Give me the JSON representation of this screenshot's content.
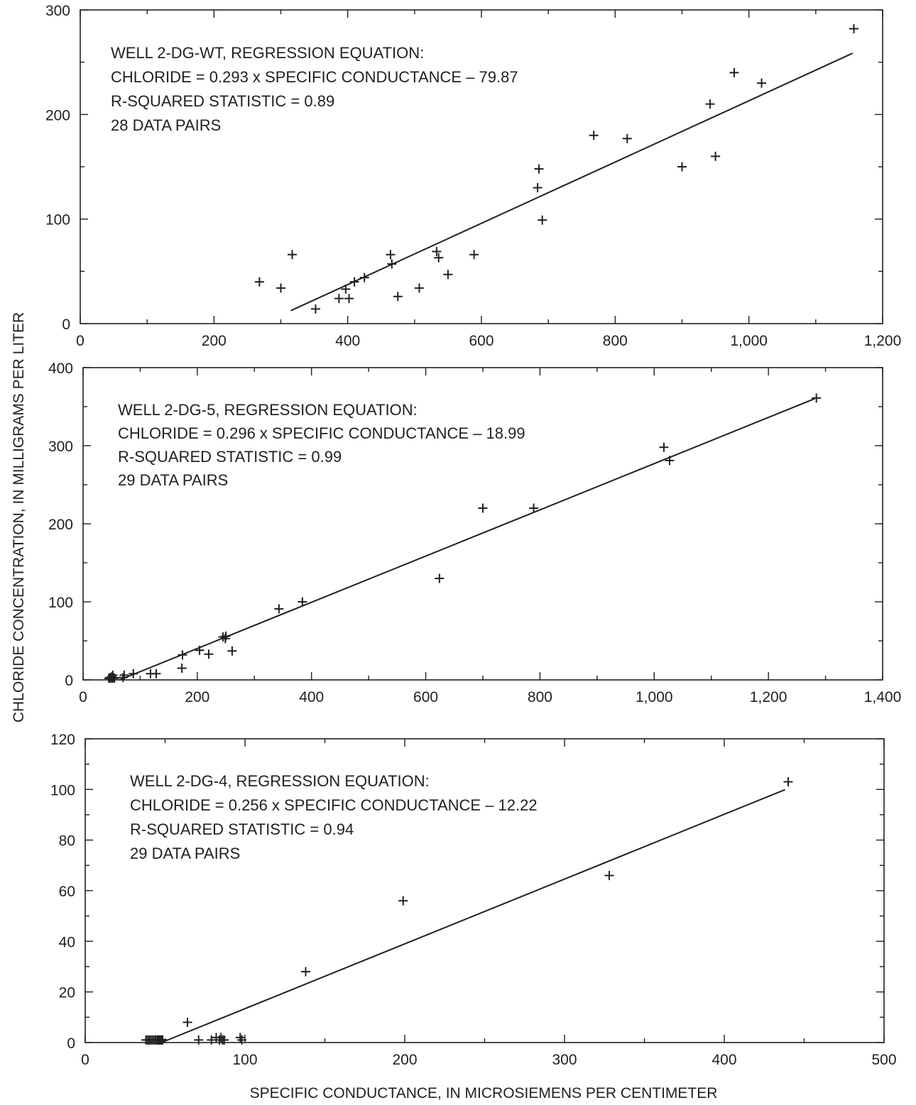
{
  "figure": {
    "ylabel": "CHLORIDE CONCENTRATION, IN MILLIGRAMS PER LITER",
    "xlabel": "SPECIFIC CONDUCTANCE, IN MICROSIEMENS PER CENTIMETER",
    "colors": {
      "ink": "#231f20",
      "background": "#ffffff"
    }
  },
  "chart_data": [
    {
      "type": "scatter",
      "title": "",
      "xlim": [
        0,
        1200
      ],
      "ylim": [
        0,
        300
      ],
      "x_ticks": [
        0,
        200,
        400,
        600,
        800,
        1000,
        1200
      ],
      "x_tick_labels": [
        "0",
        "200",
        "400",
        "600",
        "800",
        "1,000",
        "1,200"
      ],
      "y_ticks": [
        0,
        100,
        200,
        300
      ],
      "y_tick_labels": [
        "0",
        "100",
        "200",
        "300"
      ],
      "annotation": [
        "WELL 2-DG-WT, REGRESSION EQUATION:",
        "CHLORIDE = 0.293 x SPECIFIC CONDUCTANCE – 79.87",
        "R-SQUARED STATISTIC = 0.89",
        "28 DATA PAIRS"
      ],
      "regression": {
        "slope": 0.293,
        "intercept": -79.87,
        "x_range": [
          315,
          1155
        ]
      },
      "points": [
        [
          268,
          40
        ],
        [
          300,
          34
        ],
        [
          317,
          66
        ],
        [
          352,
          14
        ],
        [
          387,
          24
        ],
        [
          397,
          33
        ],
        [
          402,
          24
        ],
        [
          410,
          40
        ],
        [
          425,
          44
        ],
        [
          464,
          66
        ],
        [
          466,
          57
        ],
        [
          475,
          26
        ],
        [
          507,
          34
        ],
        [
          533,
          69
        ],
        [
          536,
          63
        ],
        [
          550,
          47
        ],
        [
          589,
          66
        ],
        [
          684,
          130
        ],
        [
          686,
          148
        ],
        [
          691,
          99
        ],
        [
          768,
          180
        ],
        [
          818,
          177
        ],
        [
          900,
          150
        ],
        [
          942,
          210
        ],
        [
          950,
          160
        ],
        [
          978,
          240
        ],
        [
          1019,
          230
        ],
        [
          1157,
          282
        ]
      ],
      "grid": false
    },
    {
      "type": "scatter",
      "title": "",
      "xlim": [
        0,
        1400
      ],
      "ylim": [
        0,
        400
      ],
      "x_ticks": [
        0,
        200,
        400,
        600,
        800,
        1000,
        1200,
        1400
      ],
      "x_tick_labels": [
        "0",
        "200",
        "400",
        "600",
        "800",
        "1,000",
        "1,200",
        "1,400"
      ],
      "y_ticks": [
        0,
        100,
        200,
        300,
        400
      ],
      "y_tick_labels": [
        "0",
        "100",
        "200",
        "300",
        "400"
      ],
      "annotation": [
        "WELL 2-DG-5, REGRESSION EQUATION:",
        "CHLORIDE = 0.296 x SPECIFIC CONDUCTANCE  – 18.99",
        "R-SQUARED STATISTIC = 0.99",
        "29 DATA PAIRS"
      ],
      "regression": {
        "slope": 0.296,
        "intercept": -18.99,
        "x_range": [
          64,
          1281
        ]
      },
      "points": [
        [
          45,
          2
        ],
        [
          47,
          3
        ],
        [
          48,
          2
        ],
        [
          50,
          4
        ],
        [
          51,
          2
        ],
        [
          52,
          6
        ],
        [
          53,
          3
        ],
        [
          55,
          2
        ],
        [
          70,
          3
        ],
        [
          72,
          6
        ],
        [
          88,
          8
        ],
        [
          118,
          8
        ],
        [
          128,
          8
        ],
        [
          173,
          15
        ],
        [
          174,
          32
        ],
        [
          204,
          38
        ],
        [
          220,
          33
        ],
        [
          245,
          55
        ],
        [
          249,
          53
        ],
        [
          250,
          56
        ],
        [
          261,
          37
        ],
        [
          343,
          91
        ],
        [
          384,
          100
        ],
        [
          624,
          130
        ],
        [
          700,
          220
        ],
        [
          789,
          220
        ],
        [
          1017,
          298
        ],
        [
          1027,
          281
        ],
        [
          1284,
          361
        ]
      ],
      "grid": false
    },
    {
      "type": "scatter",
      "title": "",
      "xlim": [
        0,
        500
      ],
      "ylim": [
        0,
        120
      ],
      "x_ticks": [
        0,
        100,
        200,
        300,
        400,
        500
      ],
      "x_tick_labels": [
        "0",
        "100",
        "200",
        "300",
        "400",
        "500"
      ],
      "y_ticks": [
        0,
        20,
        40,
        60,
        80,
        100,
        120
      ],
      "y_tick_labels": [
        "0",
        "20",
        "40",
        "60",
        "80",
        "100",
        "120"
      ],
      "annotation": [
        "WELL 2-DG-4, REGRESSION EQUATION:",
        "CHLORIDE = 0.256 x SPECIFIC CONDUCTANCE – 12.22",
        "R-SQUARED STATISTIC = 0.94",
        "29 DATA PAIRS"
      ],
      "regression": {
        "slope": 0.256,
        "intercept": -12.22,
        "x_range": [
          48,
          438
        ]
      },
      "points": [
        [
          38,
          1
        ],
        [
          39,
          1
        ],
        [
          40,
          1
        ],
        [
          41,
          1
        ],
        [
          42,
          1
        ],
        [
          43,
          1
        ],
        [
          44,
          1
        ],
        [
          45,
          1
        ],
        [
          45.5,
          1
        ],
        [
          46,
          1
        ],
        [
          46.5,
          1
        ],
        [
          47,
          1
        ],
        [
          47.5,
          1
        ],
        [
          48,
          1
        ],
        [
          48.5,
          1
        ],
        [
          64,
          8
        ],
        [
          71,
          1
        ],
        [
          79,
          1
        ],
        [
          82,
          2
        ],
        [
          84,
          1
        ],
        [
          85,
          2
        ],
        [
          86,
          1
        ],
        [
          87,
          1
        ],
        [
          97,
          2
        ],
        [
          98,
          1
        ],
        [
          138,
          28
        ],
        [
          199,
          56
        ],
        [
          328,
          66
        ],
        [
          440,
          103
        ]
      ],
      "grid": false
    }
  ]
}
